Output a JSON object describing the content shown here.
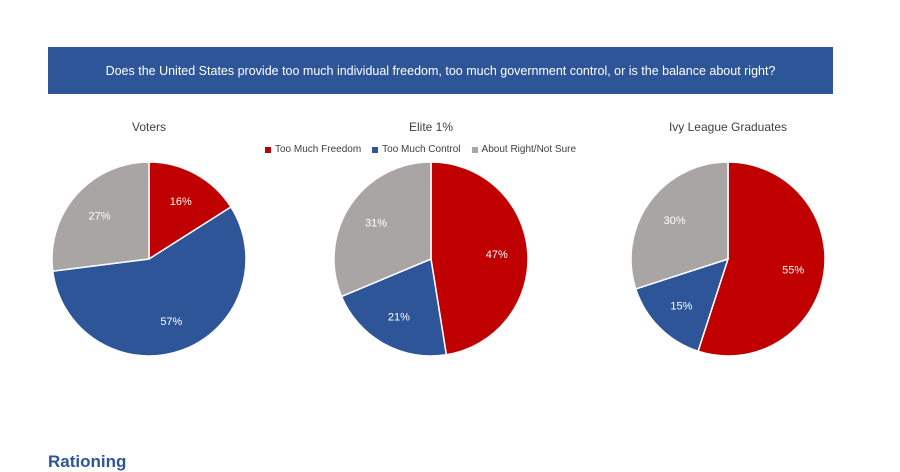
{
  "banner": {
    "question": "Does the United States provide too much individual freedom, too much government control, or is the balance about right?"
  },
  "legend": {
    "items": [
      {
        "label": "Too Much Freedom",
        "color": "#c00000"
      },
      {
        "label": "Too Much Control",
        "color": "#2e5597"
      },
      {
        "label": "About Right/Not Sure",
        "color": "#aaa5a5"
      }
    ]
  },
  "colors": {
    "banner": "#2e5597",
    "freedom": "#c00000",
    "control": "#2e5597",
    "right": "#aaa5a5"
  },
  "chart_data": [
    {
      "type": "pie",
      "title": "Voters",
      "categories": [
        "Too Much Freedom",
        "Too Much Control",
        "About Right/Not Sure"
      ],
      "values": [
        16,
        57,
        27
      ],
      "labels": [
        "16%",
        "57%",
        "27%"
      ]
    },
    {
      "type": "pie",
      "title": "Elite 1%",
      "categories": [
        "Too Much Freedom",
        "Too Much Control",
        "About Right/Not Sure"
      ],
      "values": [
        47,
        21,
        31
      ],
      "labels": [
        "47%",
        "21%",
        "31%"
      ]
    },
    {
      "type": "pie",
      "title": "Ivy League Graduates",
      "categories": [
        "Too Much Freedom",
        "Too Much Control",
        "About Right/Not Sure"
      ],
      "values": [
        55,
        15,
        30
      ],
      "labels": [
        "55%",
        "15%",
        "30%"
      ]
    }
  ],
  "footer": {
    "partial_heading": "Rationing"
  }
}
